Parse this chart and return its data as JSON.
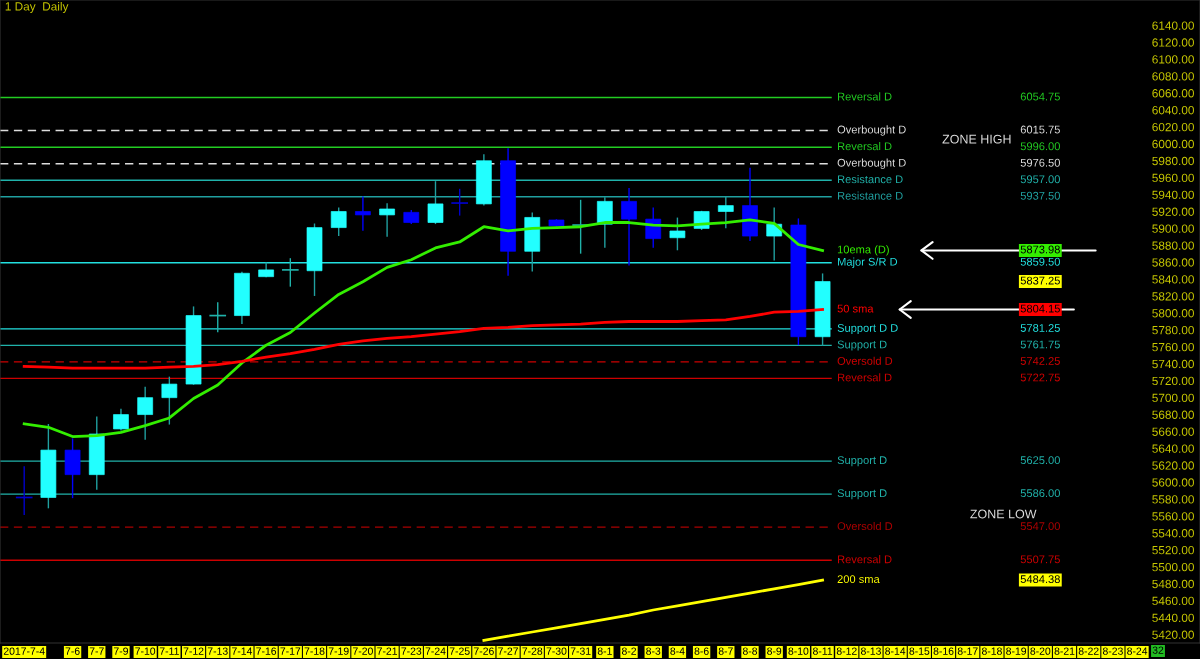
{
  "chart_data": {
    "type": "candlestick",
    "title": "1 Day  Daily",
    "categories": [
      "2017-7-4",
      null,
      "7-6",
      "7-7",
      "7-9",
      "7-10",
      "7-11",
      "7-12",
      "7-13",
      "7-14",
      "7-16",
      "7-17",
      "7-18",
      "7-19",
      "7-20",
      "7-21",
      "7-23",
      "7-24",
      "7-25",
      "7-26",
      "7-27",
      "7-28",
      "7-30",
      "7-31",
      "8-1",
      "8-2",
      "8-3",
      "8-4",
      "8-6",
      "8-7",
      "8-8",
      "8-9",
      "8-10",
      "8-11",
      "8-12",
      "8-13",
      "8-14",
      "8-15",
      "8-16",
      "8-17",
      "8-18",
      "8-19",
      "8-20",
      "8-21",
      "8-22",
      "8-23",
      "8-24"
    ],
    "ohlc": [
      [
        5582,
        5618,
        5562,
        5582
      ],
      [
        5582,
        5668,
        5570,
        5638
      ],
      [
        5638,
        5651,
        5582,
        5609
      ],
      [
        5609,
        5677,
        5592,
        5657
      ],
      [
        5663,
        5686,
        5662,
        5680
      ],
      [
        5680,
        5712,
        5651,
        5700
      ],
      [
        5700,
        5724,
        5669,
        5716
      ],
      [
        5716,
        5807,
        5716,
        5797
      ],
      [
        5797,
        5812,
        5778,
        5797
      ],
      [
        5797,
        5848,
        5788,
        5847
      ],
      [
        5843,
        5859,
        5843,
        5851
      ],
      [
        5851,
        5864,
        5832,
        5851
      ],
      [
        5850,
        5905,
        5821,
        5901
      ],
      [
        5901,
        5924,
        5892,
        5920
      ],
      [
        5920,
        5937,
        5898,
        5916
      ],
      [
        5916,
        5929,
        5891,
        5923
      ],
      [
        5919,
        5921,
        5906,
        5907
      ],
      [
        5907,
        5955,
        5906,
        5929
      ],
      [
        5930,
        5946,
        5916,
        5930
      ],
      [
        5929,
        5987,
        5928,
        5980
      ],
      [
        5980,
        5994,
        5845,
        5873
      ],
      [
        5873,
        5918,
        5850,
        5913
      ],
      [
        5910,
        5910,
        5903,
        5903
      ],
      [
        5904,
        5933,
        5871,
        5904
      ],
      [
        5905,
        5936,
        5878,
        5932
      ],
      [
        5932,
        5947,
        5857,
        5911
      ],
      [
        5911,
        5924,
        5878,
        5888
      ],
      [
        5889,
        5912,
        5875,
        5897
      ],
      [
        5900,
        5920,
        5899,
        5920
      ],
      [
        5920,
        5937,
        5901,
        5927
      ],
      [
        5927,
        5971,
        5886,
        5891
      ],
      [
        5891,
        5924,
        5863,
        5905
      ],
      [
        5904,
        5911,
        5763,
        5772
      ],
      [
        5772,
        5846,
        5762,
        5837.25
      ],
      null,
      null,
      null,
      null,
      null,
      null,
      null,
      null,
      null,
      null,
      null,
      null,
      null
    ],
    "colors": [
      "#0000cc",
      "#22ffff",
      "#0000ff",
      "#22ffff",
      "#22ffff",
      "#22ffff",
      "#22ffff",
      "#22ffff",
      "#20b2aa",
      "#22ffff",
      "#22ffff",
      "#20b2aa",
      "#22ffff",
      "#22ffff",
      "#0000ff",
      "#22ffff",
      "#0000ff",
      "#22ffff",
      "#0000cc",
      "#22ffff",
      "#0000ff",
      "#22ffff",
      "#0000ff",
      "#20b2aa",
      "#22ffff",
      "#0000ff",
      "#0000ff",
      "#22ffff",
      "#22ffff",
      "#22ffff",
      "#0000ff",
      "#22ffff",
      "#0000ff",
      "#22ffff",
      null,
      null,
      null,
      null,
      null,
      null,
      null,
      null,
      null,
      null,
      null,
      null,
      null
    ],
    "series": [
      {
        "name": "10ema (D)",
        "type": "line",
        "color": "#33ee00",
        "values": [
          5669,
          5665,
          5654,
          5655,
          5659,
          5667,
          5676,
          5699,
          5715,
          5741,
          5762,
          5777,
          5800,
          5822,
          5837,
          5854,
          5863,
          5877,
          5884,
          5902,
          5897,
          5900,
          5901,
          5902,
          5907,
          5907,
          5904,
          5903,
          5905,
          5907,
          5910,
          5906,
          5881,
          5873.98,
          null,
          null,
          null,
          null,
          null,
          null,
          null,
          null,
          null,
          null,
          null,
          null,
          null
        ]
      },
      {
        "name": "50 sma",
        "type": "line",
        "color": "#ff0000",
        "values": [
          5737,
          5736,
          5735,
          5735,
          5735,
          5735,
          5736,
          5737,
          5739,
          5743,
          5748,
          5752,
          5757,
          5763,
          5767,
          5770,
          5772,
          5775,
          5778,
          5782,
          5783,
          5785,
          5786,
          5787,
          5789,
          5790,
          5790,
          5790,
          5791,
          5792,
          5796,
          5801,
          5802,
          5804.15,
          null,
          null,
          null,
          null,
          null,
          null,
          null,
          null,
          null,
          null,
          null,
          null,
          null
        ]
      },
      {
        "name": "200 sma",
        "type": "line",
        "color": "#ffff00",
        "values": [
          null,
          null,
          null,
          null,
          null,
          null,
          null,
          null,
          null,
          null,
          null,
          null,
          null,
          null,
          null,
          null,
          null,
          null,
          null,
          5413,
          5418,
          5423,
          5428,
          5433,
          5438,
          5443,
          5449,
          5454,
          5459,
          5464,
          5469,
          5474,
          5479,
          5484.38,
          null,
          null,
          null,
          null,
          null,
          null,
          null,
          null,
          null,
          null,
          null,
          null,
          null
        ]
      }
    ],
    "ylim": [
      5410,
      6170
    ],
    "yticks": [
      {
        "value": 5420,
        "label": "5420.00"
      },
      {
        "value": 5440,
        "label": "5440.00"
      },
      {
        "value": 5460,
        "label": "5460.00"
      },
      {
        "value": 5480,
        "label": "5480.00"
      },
      {
        "value": 5500,
        "label": "5500.00"
      },
      {
        "value": 5520,
        "label": "5520.00"
      },
      {
        "value": 5540,
        "label": "5540.00"
      },
      {
        "value": 5560,
        "label": "5560.00"
      },
      {
        "value": 5580,
        "label": "5580.00"
      },
      {
        "value": 5600,
        "label": "5600.00"
      },
      {
        "value": 5620,
        "label": "5620.00"
      },
      {
        "value": 5640,
        "label": "5640.00"
      },
      {
        "value": 5660,
        "label": "5660.00"
      },
      {
        "value": 5680,
        "label": "5680.00"
      },
      {
        "value": 5700,
        "label": "5700.00"
      },
      {
        "value": 5720,
        "label": "5720.00"
      },
      {
        "value": 5740,
        "label": "5740.00"
      },
      {
        "value": 5760,
        "label": "5760.00"
      },
      {
        "value": 5780,
        "label": "5780.00"
      },
      {
        "value": 5800,
        "label": "5800.00"
      },
      {
        "value": 5820,
        "label": "5820.00"
      },
      {
        "value": 5840,
        "label": "5840.00"
      },
      {
        "value": 5860,
        "label": "5860.00"
      },
      {
        "value": 5880,
        "label": "5880.00"
      },
      {
        "value": 5900,
        "label": "5900.00"
      },
      {
        "value": 5920,
        "label": "5920.00"
      },
      {
        "value": 5940,
        "label": "5940.00"
      },
      {
        "value": 5960,
        "label": "5960.00"
      },
      {
        "value": 5980,
        "label": "5980.00"
      },
      {
        "value": 6000,
        "label": "6000.00"
      },
      {
        "value": 6020,
        "label": "6020.00"
      },
      {
        "value": 6040,
        "label": "6040.00"
      },
      {
        "value": 6060,
        "label": "6060.00"
      },
      {
        "value": 6080,
        "label": "6080.00"
      },
      {
        "value": 6100,
        "label": "6100.00"
      },
      {
        "value": 6120,
        "label": "6120.00"
      },
      {
        "value": 6140,
        "label": "6140.00"
      }
    ],
    "ref_lines": [
      {
        "axis": "y",
        "value": 6054.75,
        "label": "Reversal D",
        "color": "#22cc22",
        "line_style": "solid"
      },
      {
        "axis": "y",
        "value": 6015.75,
        "label": "Overbought D",
        "color": "#dddddd",
        "line_style": "dashed"
      },
      {
        "axis": "y",
        "value": 5996.0,
        "label": "Reversal D",
        "color": "#22cc22",
        "line_style": "solid"
      },
      {
        "axis": "y",
        "value": 5976.5,
        "label": "Overbought D",
        "color": "#dddddd",
        "line_style": "dashed"
      },
      {
        "axis": "y",
        "value": 5957.0,
        "label": "Resistance D",
        "color": "#20b2aa",
        "line_style": "solid"
      },
      {
        "axis": "y",
        "value": 5937.5,
        "label": "Resistance D",
        "color": "#20a0a0",
        "line_style": "solid"
      },
      {
        "axis": "y",
        "value": 5859.5,
        "label": "Major S/R D",
        "color": "#22e0e0",
        "line_style": "solid"
      },
      {
        "axis": "y",
        "value": 5781.25,
        "label": "Support D D",
        "color": "#22e0e0",
        "line_style": "solid"
      },
      {
        "axis": "y",
        "value": 5761.75,
        "label": "Support D",
        "color": "#20b2aa",
        "line_style": "solid"
      },
      {
        "axis": "y",
        "value": 5742.25,
        "label": "Oversold D",
        "color": "#cc0000",
        "line_style": "dashed"
      },
      {
        "axis": "y",
        "value": 5722.75,
        "label": "Reversal D",
        "color": "#cc0000",
        "line_style": "solid"
      },
      {
        "axis": "y",
        "value": 5625.0,
        "label": "Support D",
        "color": "#20b2aa",
        "line_style": "solid"
      },
      {
        "axis": "y",
        "value": 5586.0,
        "label": "Support D",
        "color": "#20b2aa",
        "line_style": "solid"
      },
      {
        "axis": "y",
        "value": 5547.0,
        "label": "Oversold D",
        "color": "#aa0000",
        "line_style": "dashed"
      },
      {
        "axis": "y",
        "value": 5507.75,
        "label": "Reversal D",
        "color": "#cc0000",
        "line_style": "solid"
      }
    ],
    "annotations": [
      "ZONE HIGH",
      "ZONE LOW",
      "32",
      "6054.75",
      "6015.75",
      "5996.00",
      "5976.50",
      "5957.00",
      "5937.50",
      "5859.50",
      "5781.25",
      "5761.75",
      "5742.25",
      "5722.75",
      "5625.00",
      "5586.00",
      "5547.00",
      "5507.75",
      "5873.98",
      "5804.15",
      "5484.38",
      "5837.25"
    ]
  }
}
